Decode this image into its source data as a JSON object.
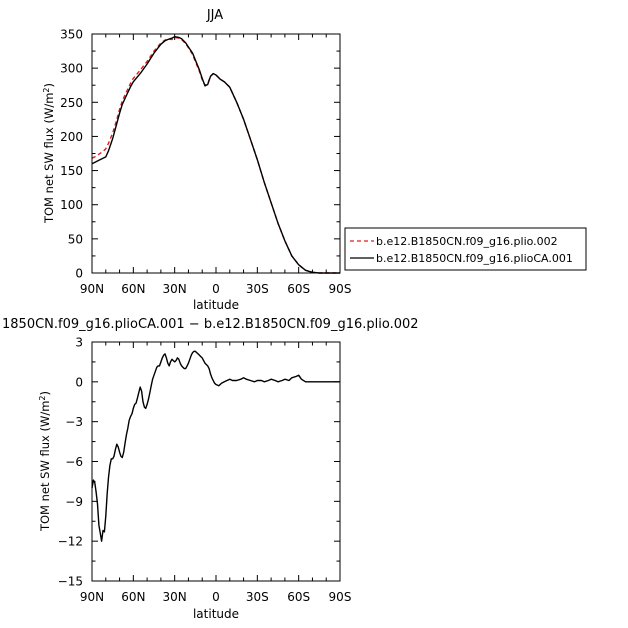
{
  "chart_data": [
    {
      "type": "line",
      "title": "JJA",
      "xlabel": "latitude",
      "ylabel": "TOM net SW flux (W/m2)",
      "ylabel_unit_base": "TOM net SW flux (W/m",
      "ylabel_unit_sup": "2",
      "ylabel_unit_close": ")",
      "xlim": [
        90,
        -90
      ],
      "ylim": [
        0,
        350
      ],
      "x_ticks": [
        {
          "value": 90,
          "label": "90N"
        },
        {
          "value": 60,
          "label": "60N"
        },
        {
          "value": 30,
          "label": "30N"
        },
        {
          "value": 0,
          "label": "0"
        },
        {
          "value": -30,
          "label": "30S"
        },
        {
          "value": -60,
          "label": "60S"
        },
        {
          "value": -90,
          "label": "90S"
        }
      ],
      "y_ticks": [
        0,
        50,
        100,
        150,
        200,
        250,
        300,
        350
      ],
      "grid": false,
      "legend_position": "right",
      "series": [
        {
          "name": "b.e12.B1850CN.f09_g16.plio.002",
          "color": "#e41a1c",
          "dash": true,
          "x": [
            90,
            88,
            85,
            82,
            80,
            78,
            75,
            72,
            70,
            68,
            65,
            62,
            60,
            55,
            50,
            45,
            40,
            37,
            35,
            32,
            30,
            27,
            25,
            22,
            20,
            17,
            15,
            12,
            10,
            8,
            6,
            4,
            2,
            0,
            -3,
            -6,
            -10,
            -15,
            -20,
            -25,
            -30,
            -35,
            -40,
            -45,
            -50,
            -55,
            -60,
            -65,
            -70,
            -75,
            -80,
            -85,
            -90
          ],
          "y": [
            168,
            170,
            174,
            178,
            182,
            190,
            205,
            225,
            240,
            252,
            265,
            278,
            285,
            297,
            310,
            325,
            337,
            341,
            343,
            342,
            345,
            344,
            342,
            336,
            330,
            320,
            310,
            295,
            283,
            275,
            277,
            288,
            292,
            290,
            284,
            280,
            272,
            250,
            225,
            196,
            166,
            133,
            103,
            73,
            47,
            25,
            12,
            4,
            1,
            0,
            0,
            0,
            0
          ]
        },
        {
          "name": "b.e12.B1850CN.f09_g16.plioCA.001",
          "color": "#000000",
          "dash": false,
          "x": [
            90,
            88,
            85,
            82,
            80,
            78,
            75,
            72,
            70,
            68,
            65,
            62,
            60,
            55,
            50,
            45,
            40,
            37,
            35,
            32,
            30,
            27,
            25,
            22,
            20,
            17,
            15,
            12,
            10,
            8,
            6,
            4,
            2,
            0,
            -3,
            -6,
            -10,
            -15,
            -20,
            -25,
            -30,
            -35,
            -40,
            -45,
            -50,
            -55,
            -60,
            -65,
            -70,
            -75,
            -80,
            -85,
            -90
          ],
          "y": [
            160,
            162,
            165,
            168,
            170,
            179,
            197,
            219,
            234,
            247,
            260,
            273,
            280,
            292,
            306,
            322,
            335,
            340,
            342,
            344,
            346,
            345,
            343,
            337,
            331,
            322,
            312,
            297,
            285,
            274,
            276,
            288,
            292,
            290,
            284,
            280,
            272,
            250,
            225,
            196,
            166,
            133,
            103,
            73,
            47,
            25,
            12,
            4,
            1,
            0,
            0,
            0,
            0
          ]
        }
      ]
    },
    {
      "type": "line",
      "title": "1850CN.f09_g16.plioCA.001 − b.e12.B1850CN.f09_g16.plio.002",
      "xlabel": "latitude",
      "ylabel": "TOM net SW flux (W/m2)",
      "ylabel_unit_base": "TOM net SW flux (W/m",
      "ylabel_unit_sup": "2",
      "ylabel_unit_close": ")",
      "xlim": [
        90,
        -90
      ],
      "ylim": [
        -15,
        3
      ],
      "x_ticks": [
        {
          "value": 90,
          "label": "90N"
        },
        {
          "value": 60,
          "label": "60N"
        },
        {
          "value": 30,
          "label": "30N"
        },
        {
          "value": 0,
          "label": "0"
        },
        {
          "value": -30,
          "label": "30S"
        },
        {
          "value": -60,
          "label": "60S"
        },
        {
          "value": -90,
          "label": "90S"
        }
      ],
      "y_ticks": [
        3,
        0,
        -3,
        -6,
        -9,
        -12,
        -15
      ],
      "y_tick_labels": [
        "3",
        "0",
        "−3",
        "−6",
        "−9",
        "−12",
        "−15"
      ],
      "grid": false,
      "series": [
        {
          "name": "",
          "color": "#000000",
          "dash": false,
          "x": [
            90,
            89,
            88,
            87,
            86,
            85,
            84,
            83,
            82,
            81,
            80,
            79,
            78,
            77,
            76,
            75,
            74,
            73,
            72,
            71,
            70,
            69,
            68,
            67,
            66,
            65,
            64,
            63,
            62,
            61,
            60,
            59,
            58,
            57,
            56,
            55,
            54,
            53,
            52,
            51,
            50,
            49,
            48,
            47,
            46,
            45,
            44,
            43,
            42,
            41,
            40,
            39,
            38,
            37,
            36,
            35,
            34,
            33,
            32,
            31,
            30,
            29,
            28,
            27,
            26,
            25,
            24,
            23,
            22,
            21,
            20,
            19,
            18,
            17,
            16,
            15,
            14,
            13,
            12,
            11,
            10,
            9,
            8,
            7,
            6,
            5,
            4,
            3,
            2,
            1,
            0,
            -2,
            -4,
            -6,
            -8,
            -10,
            -12,
            -15,
            -18,
            -20,
            -22,
            -25,
            -28,
            -30,
            -33,
            -35,
            -38,
            -40,
            -43,
            -45,
            -48,
            -50,
            -53,
            -55,
            -58,
            -60,
            -62,
            -65,
            -68,
            -70,
            -75,
            -80,
            -85,
            -90
          ],
          "y": [
            -8.0,
            -7.4,
            -7.6,
            -8.3,
            -9.2,
            -10.8,
            -11.4,
            -12.0,
            -11.2,
            -11.3,
            -10.1,
            -8.4,
            -7.2,
            -6.3,
            -5.8,
            -5.8,
            -5.6,
            -5.1,
            -4.7,
            -4.9,
            -5.3,
            -5.6,
            -5.7,
            -5.3,
            -4.6,
            -4.0,
            -3.5,
            -2.9,
            -2.6,
            -2.4,
            -2.0,
            -1.7,
            -1.6,
            -1.2,
            -0.8,
            -0.4,
            -0.7,
            -1.5,
            -1.9,
            -2.0,
            -1.7,
            -1.3,
            -0.8,
            -0.3,
            0.2,
            0.5,
            0.8,
            1.1,
            1.2,
            1.2,
            1.5,
            1.8,
            2.0,
            2.1,
            1.8,
            1.4,
            1.2,
            1.5,
            1.7,
            1.6,
            1.5,
            1.6,
            1.8,
            1.7,
            1.4,
            1.2,
            1.1,
            1.0,
            1.0,
            1.2,
            1.4,
            1.7,
            2.0,
            2.2,
            2.3,
            2.3,
            2.2,
            2.1,
            2.0,
            1.9,
            1.8,
            1.6,
            1.4,
            1.3,
            1.2,
            1.0,
            0.6,
            0.3,
            0.1,
            -0.1,
            -0.2,
            -0.3,
            -0.1,
            0.0,
            0.1,
            0.2,
            0.1,
            0.1,
            0.2,
            0.3,
            0.2,
            0.1,
            0.0,
            0.1,
            0.1,
            0.0,
            0.1,
            0.2,
            0.1,
            0.0,
            0.1,
            0.2,
            0.1,
            0.3,
            0.4,
            0.5,
            0.2,
            0.0,
            0.0,
            0.0,
            0.0,
            0.0,
            0.0,
            0.0
          ]
        }
      ]
    }
  ]
}
